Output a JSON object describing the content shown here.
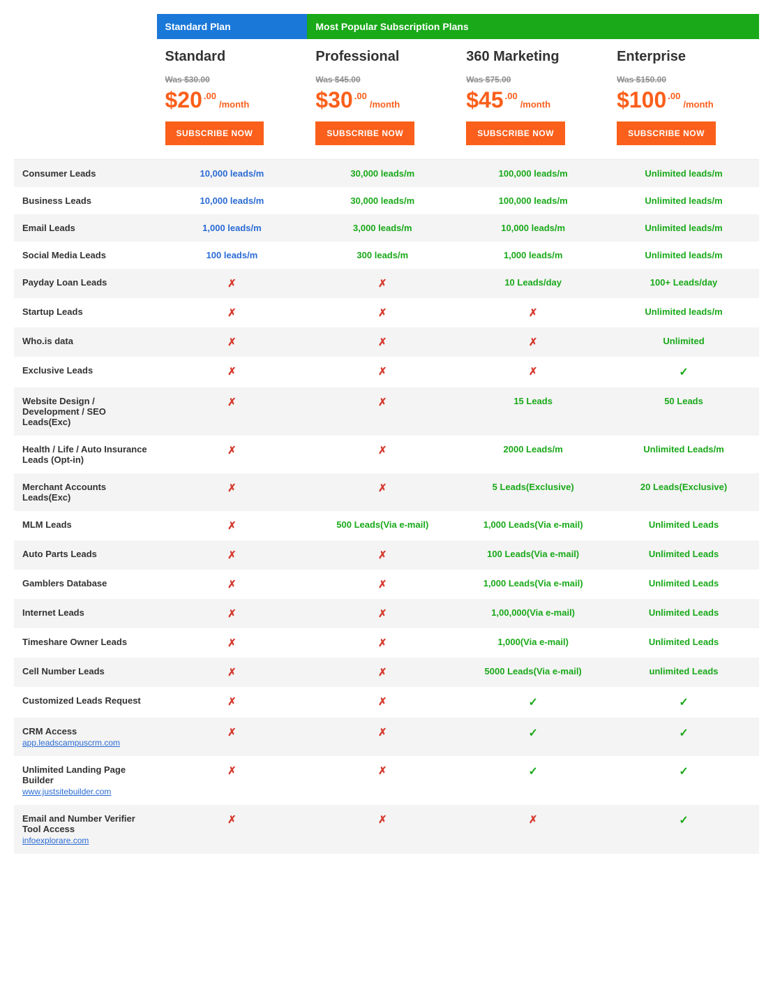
{
  "colors": {
    "banner_standard": "#1a78d8",
    "banner_popular": "#19a919",
    "accent_orange": "#fa5f1b",
    "text_blue": "#2a6bd4",
    "text_green": "#19a919",
    "text_red": "#d63a2e",
    "row_alt_bg": "#f4f4f4",
    "row_bg": "#ffffff"
  },
  "banners": {
    "standard": "Standard Plan",
    "popular": "Most Popular Subscription Plans"
  },
  "subscribe_label": "SUBSCRIBE NOW",
  "glyphs": {
    "x": "✗",
    "check": "✓"
  },
  "plans": [
    {
      "key": "standard",
      "name": "Standard",
      "was": "Was $30.00",
      "price": "$20",
      "cents": ".00",
      "per": "/month"
    },
    {
      "key": "professional",
      "name": "Professional",
      "was": "Was $45.00",
      "price": "$30",
      "cents": ".00",
      "per": "/month"
    },
    {
      "key": "marketing360",
      "name": "360 Marketing",
      "was": "Was $75.00",
      "price": "$45",
      "cents": ".00",
      "per": "/month"
    },
    {
      "key": "enterprise",
      "name": "Enterprise",
      "was": "Was $150.00",
      "price": "$100",
      "cents": ".00",
      "per": "/month"
    }
  ],
  "features": [
    {
      "label": "Consumer Leads",
      "cells": [
        {
          "text": "10,000 leads/m",
          "color": "blue"
        },
        {
          "text": "30,000 leads/m",
          "color": "green"
        },
        {
          "text": "100,000 leads/m",
          "color": "green"
        },
        {
          "text": "Unlimited leads/m",
          "color": "green"
        }
      ]
    },
    {
      "label": "Business Leads",
      "cells": [
        {
          "text": "10,000 leads/m",
          "color": "blue"
        },
        {
          "text": "30,000 leads/m",
          "color": "green"
        },
        {
          "text": "100,000 leads/m",
          "color": "green"
        },
        {
          "text": "Unlimited leads/m",
          "color": "green"
        }
      ]
    },
    {
      "label": "Email Leads",
      "cells": [
        {
          "text": "1,000 leads/m",
          "color": "blue"
        },
        {
          "text": "3,000 leads/m",
          "color": "green"
        },
        {
          "text": "10,000 leads/m",
          "color": "green"
        },
        {
          "text": "Unlimited leads/m",
          "color": "green"
        }
      ]
    },
    {
      "label": "Social Media Leads",
      "cells": [
        {
          "text": "100 leads/m",
          "color": "blue"
        },
        {
          "text": "300 leads/m",
          "color": "green"
        },
        {
          "text": "1,000 leads/m",
          "color": "green"
        },
        {
          "text": "Unlimited leads/m",
          "color": "green"
        }
      ]
    },
    {
      "label": "Payday Loan Leads",
      "cells": [
        {
          "glyph": "x"
        },
        {
          "glyph": "x"
        },
        {
          "text": "10 Leads/day",
          "color": "green"
        },
        {
          "text": "100+ Leads/day",
          "color": "green"
        }
      ]
    },
    {
      "label": "Startup Leads",
      "cells": [
        {
          "glyph": "x"
        },
        {
          "glyph": "x"
        },
        {
          "glyph": "x"
        },
        {
          "text": "Unlimited leads/m",
          "color": "green"
        }
      ]
    },
    {
      "label": "Who.is data",
      "cells": [
        {
          "glyph": "x"
        },
        {
          "glyph": "x"
        },
        {
          "glyph": "x"
        },
        {
          "text": "Unlimited",
          "color": "green"
        }
      ]
    },
    {
      "label": "Exclusive Leads",
      "cells": [
        {
          "glyph": "x"
        },
        {
          "glyph": "x"
        },
        {
          "glyph": "x"
        },
        {
          "glyph": "check"
        }
      ]
    },
    {
      "label": "Website Design / Development / SEO Leads(Exc)",
      "cells": [
        {
          "glyph": "x"
        },
        {
          "glyph": "x"
        },
        {
          "text": "15 Leads",
          "color": "green"
        },
        {
          "text": "50 Leads",
          "color": "green"
        }
      ]
    },
    {
      "label": "Health / Life / Auto Insurance Leads (Opt-in)",
      "cells": [
        {
          "glyph": "x"
        },
        {
          "glyph": "x"
        },
        {
          "text": "2000 Leads/m",
          "color": "green"
        },
        {
          "text": "Unlimited Leads/m",
          "color": "green"
        }
      ]
    },
    {
      "label": "Merchant Accounts Leads(Exc)",
      "cells": [
        {
          "glyph": "x"
        },
        {
          "glyph": "x"
        },
        {
          "text": "5 Leads(Exclusive)",
          "color": "green"
        },
        {
          "text": "20 Leads(Exclusive)",
          "color": "green"
        }
      ]
    },
    {
      "label": "MLM Leads",
      "cells": [
        {
          "glyph": "x"
        },
        {
          "text": "500 Leads(Via e-mail)",
          "color": "green"
        },
        {
          "text": "1,000 Leads(Via e-mail)",
          "color": "green"
        },
        {
          "text": "Unlimited Leads",
          "color": "green"
        }
      ]
    },
    {
      "label": "Auto Parts Leads",
      "cells": [
        {
          "glyph": "x"
        },
        {
          "glyph": "x"
        },
        {
          "text": "100 Leads(Via e-mail)",
          "color": "green"
        },
        {
          "text": "Unlimited Leads",
          "color": "green"
        }
      ]
    },
    {
      "label": "Gamblers Database",
      "cells": [
        {
          "glyph": "x"
        },
        {
          "glyph": "x"
        },
        {
          "text": "1,000 Leads(Via e-mail)",
          "color": "green"
        },
        {
          "text": "Unlimited Leads",
          "color": "green"
        }
      ]
    },
    {
      "label": "Internet Leads",
      "cells": [
        {
          "glyph": "x"
        },
        {
          "glyph": "x"
        },
        {
          "text": "1,00,000(Via e-mail)",
          "color": "green"
        },
        {
          "text": "Unlimited Leads",
          "color": "green"
        }
      ]
    },
    {
      "label": "Timeshare Owner Leads",
      "cells": [
        {
          "glyph": "x"
        },
        {
          "glyph": "x"
        },
        {
          "text": "1,000(Via e-mail)",
          "color": "green"
        },
        {
          "text": "Unlimited Leads",
          "color": "green"
        }
      ]
    },
    {
      "label": "Cell Number Leads",
      "cells": [
        {
          "glyph": "x"
        },
        {
          "glyph": "x"
        },
        {
          "text": "5000 Leads(Via e-mail)",
          "color": "green"
        },
        {
          "text": "unlimited Leads",
          "color": "green"
        }
      ]
    },
    {
      "label": "Customized Leads Request",
      "cells": [
        {
          "glyph": "x"
        },
        {
          "glyph": "x"
        },
        {
          "glyph": "check"
        },
        {
          "glyph": "check"
        }
      ]
    },
    {
      "label": "CRM Access",
      "sublink": "app.leadscampuscrm.com",
      "cells": [
        {
          "glyph": "x"
        },
        {
          "glyph": "x"
        },
        {
          "glyph": "check"
        },
        {
          "glyph": "check"
        }
      ]
    },
    {
      "label": "Unlimited Landing Page Builder",
      "sublink": "www.justsitebuilder.com",
      "cells": [
        {
          "glyph": "x"
        },
        {
          "glyph": "x"
        },
        {
          "glyph": "check"
        },
        {
          "glyph": "check"
        }
      ]
    },
    {
      "label": "Email and Number Verifier Tool Access",
      "sublink": "infoexplorare.com",
      "cells": [
        {
          "glyph": "x"
        },
        {
          "glyph": "x"
        },
        {
          "glyph": "x"
        },
        {
          "glyph": "check"
        }
      ]
    }
  ]
}
